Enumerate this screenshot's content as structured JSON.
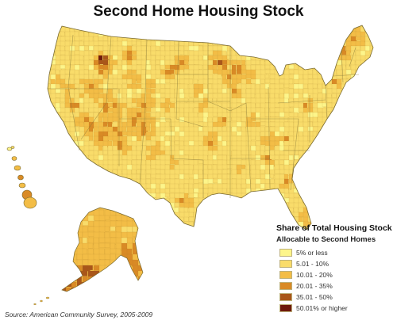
{
  "title": "Second Home Housing Stock",
  "legend": {
    "title_line1": "Share of Total Housing Stock",
    "title_line2": "Allocable to Second Homes",
    "items": [
      {
        "label": "5% or less",
        "color": "#fdf58a"
      },
      {
        "label": "5.01 - 10%",
        "color": "#f9dc6a"
      },
      {
        "label": "10.01 - 20%",
        "color": "#f3bd46"
      },
      {
        "label": "20.01 - 35%",
        "color": "#d98a25"
      },
      {
        "label": "35.01 - 50%",
        "color": "#a9561a"
      },
      {
        "label": "50.01% or higher",
        "color": "#6e1a0c"
      }
    ]
  },
  "source": "Source: American Community Survey, 2005-2009",
  "colors": {
    "outline": "#7a6a30",
    "state_border": "#8b7d3a"
  }
}
